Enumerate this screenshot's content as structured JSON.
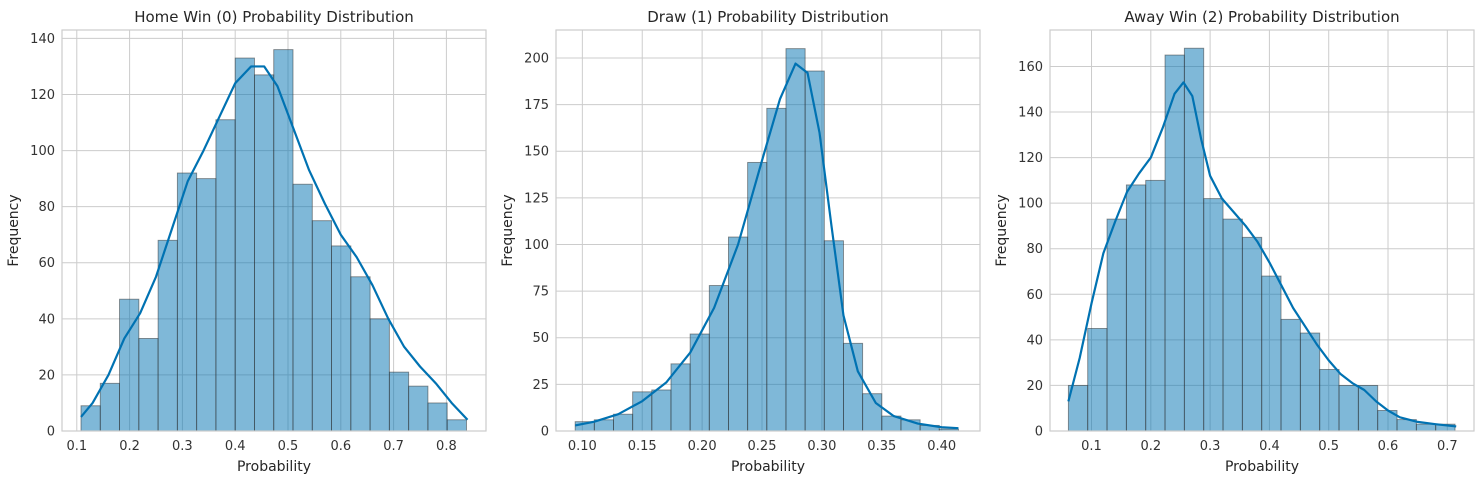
{
  "chart_data": [
    {
      "type": "bar",
      "title": "Home Win (0) Probability Distribution",
      "xlabel": "Probability",
      "ylabel": "Frequency",
      "xlim": [
        0.072,
        0.875
      ],
      "ylim": [
        0,
        143
      ],
      "xticks": [
        0.1,
        0.2,
        0.3,
        0.4,
        0.5,
        0.6,
        0.7,
        0.8
      ],
      "xtick_labels": [
        "0.1",
        "0.2",
        "0.3",
        "0.4",
        "0.5",
        "0.6",
        "0.7",
        "0.8"
      ],
      "yticks": [
        0,
        20,
        40,
        60,
        80,
        100,
        120,
        140
      ],
      "ytick_labels": [
        "0",
        "20",
        "40",
        "60",
        "80",
        "100",
        "120",
        "140"
      ],
      "bin_start": 0.108,
      "bin_width": 0.0365,
      "values": [
        9,
        17,
        47,
        33,
        68,
        92,
        90,
        111,
        133,
        127,
        136,
        88,
        75,
        66,
        55,
        40,
        21,
        16,
        10,
        4
      ],
      "kde": [
        [
          0.108,
          5
        ],
        [
          0.13,
          10
        ],
        [
          0.16,
          20
        ],
        [
          0.19,
          33
        ],
        [
          0.22,
          42
        ],
        [
          0.25,
          55
        ],
        [
          0.28,
          72
        ],
        [
          0.31,
          89
        ],
        [
          0.34,
          100
        ],
        [
          0.37,
          112
        ],
        [
          0.4,
          124
        ],
        [
          0.43,
          130
        ],
        [
          0.455,
          130
        ],
        [
          0.48,
          123
        ],
        [
          0.51,
          108
        ],
        [
          0.54,
          93
        ],
        [
          0.57,
          81
        ],
        [
          0.6,
          70
        ],
        [
          0.63,
          62
        ],
        [
          0.66,
          52
        ],
        [
          0.69,
          40
        ],
        [
          0.72,
          30
        ],
        [
          0.75,
          23
        ],
        [
          0.78,
          17
        ],
        [
          0.81,
          10
        ],
        [
          0.84,
          4
        ]
      ],
      "grid": true,
      "color": "#0072B2"
    },
    {
      "type": "bar",
      "title": "Draw (1) Probability Distribution",
      "xlabel": "Probability",
      "ylabel": "Frequency",
      "xlim": [
        0.078,
        0.432
      ],
      "ylim": [
        0,
        215
      ],
      "xticks": [
        0.1,
        0.15,
        0.2,
        0.25,
        0.3,
        0.35,
        0.4
      ],
      "xtick_labels": [
        "0.10",
        "0.15",
        "0.20",
        "0.25",
        "0.30",
        "0.35",
        "0.40"
      ],
      "yticks": [
        0,
        25,
        50,
        75,
        100,
        125,
        150,
        175,
        200
      ],
      "ytick_labels": [
        "0",
        "25",
        "50",
        "75",
        "100",
        "125",
        "150",
        "175",
        "200"
      ],
      "bin_start": 0.094,
      "bin_width": 0.016,
      "values": [
        5,
        6,
        9,
        21,
        22,
        36,
        52,
        78,
        104,
        144,
        173,
        205,
        193,
        102,
        47,
        20,
        8,
        6,
        3,
        1
      ],
      "kde": [
        [
          0.094,
          3
        ],
        [
          0.11,
          5
        ],
        [
          0.13,
          9
        ],
        [
          0.15,
          16
        ],
        [
          0.17,
          26
        ],
        [
          0.19,
          42
        ],
        [
          0.21,
          66
        ],
        [
          0.23,
          100
        ],
        [
          0.25,
          145
        ],
        [
          0.265,
          178
        ],
        [
          0.278,
          197
        ],
        [
          0.288,
          192
        ],
        [
          0.298,
          160
        ],
        [
          0.308,
          110
        ],
        [
          0.318,
          62
        ],
        [
          0.33,
          32
        ],
        [
          0.345,
          15
        ],
        [
          0.36,
          8
        ],
        [
          0.38,
          4
        ],
        [
          0.4,
          2
        ],
        [
          0.414,
          1.5
        ]
      ],
      "grid": true,
      "color": "#0072B2"
    },
    {
      "type": "bar",
      "title": "Away Win (2) Probability Distribution",
      "xlabel": "Probability",
      "ylabel": "Frequency",
      "xlim": [
        0.03,
        0.745
      ],
      "ylim": [
        0,
        176
      ],
      "xticks": [
        0.1,
        0.2,
        0.3,
        0.4,
        0.5,
        0.6,
        0.7
      ],
      "xtick_labels": [
        "0.1",
        "0.2",
        "0.3",
        "0.4",
        "0.5",
        "0.6",
        "0.7"
      ],
      "yticks": [
        0,
        20,
        40,
        60,
        80,
        100,
        120,
        140,
        160
      ],
      "ytick_labels": [
        "0",
        "20",
        "40",
        "60",
        "80",
        "100",
        "120",
        "140",
        "160"
      ],
      "bin_start": 0.061,
      "bin_width": 0.0326,
      "values": [
        20,
        45,
        93,
        108,
        110,
        165,
        168,
        102,
        93,
        85,
        68,
        49,
        43,
        27,
        20,
        20,
        9,
        5,
        3,
        3
      ],
      "kde": [
        [
          0.061,
          13
        ],
        [
          0.08,
          32
        ],
        [
          0.1,
          56
        ],
        [
          0.12,
          78
        ],
        [
          0.14,
          92
        ],
        [
          0.16,
          105
        ],
        [
          0.18,
          113
        ],
        [
          0.2,
          120
        ],
        [
          0.22,
          133
        ],
        [
          0.24,
          148
        ],
        [
          0.255,
          153
        ],
        [
          0.27,
          147
        ],
        [
          0.285,
          128
        ],
        [
          0.3,
          112
        ],
        [
          0.32,
          102
        ],
        [
          0.34,
          96
        ],
        [
          0.36,
          90
        ],
        [
          0.38,
          83
        ],
        [
          0.4,
          74
        ],
        [
          0.42,
          64
        ],
        [
          0.44,
          54
        ],
        [
          0.46,
          46
        ],
        [
          0.48,
          38
        ],
        [
          0.5,
          31
        ],
        [
          0.52,
          25
        ],
        [
          0.54,
          21
        ],
        [
          0.56,
          18
        ],
        [
          0.58,
          13
        ],
        [
          0.6,
          9
        ],
        [
          0.62,
          6
        ],
        [
          0.65,
          4
        ],
        [
          0.68,
          3
        ],
        [
          0.715,
          2
        ]
      ],
      "grid": true,
      "color": "#0072B2"
    }
  ]
}
